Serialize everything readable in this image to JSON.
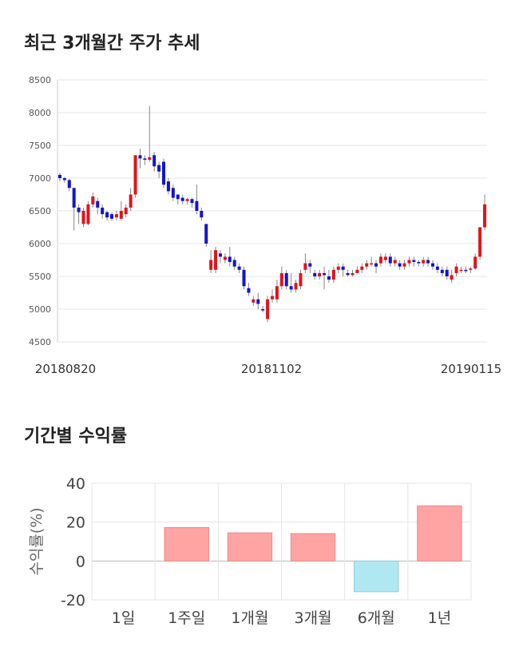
{
  "sections": {
    "candle_title": "최근 3개월간 주가 추세",
    "returns_title": "기간별 수익률"
  },
  "chart_data": [
    {
      "type": "candlestick",
      "title": "최근 3개월간 주가 추세",
      "x_tick_labels": [
        "20180820",
        "20181102",
        "20190115"
      ],
      "y_ticks": [
        4500,
        5000,
        5500,
        6000,
        6500,
        7000,
        7500,
        8000,
        8500
      ],
      "ylim": [
        4500,
        8500
      ],
      "grid": true,
      "colors": {
        "up": "#e0141b",
        "down": "#1414cc",
        "wick": "#888888",
        "grid": "#e4e4e4"
      },
      "candles": [
        [
          7050,
          7000,
          7080,
          6950
        ],
        [
          7000,
          6970,
          7020,
          6930
        ],
        [
          6970,
          6850,
          6990,
          6800
        ],
        [
          6850,
          6550,
          6850,
          6200
        ],
        [
          6550,
          6480,
          6600,
          6300
        ],
        [
          6300,
          6500,
          6550,
          6250
        ],
        [
          6300,
          6600,
          6650,
          6280
        ],
        [
          6600,
          6720,
          6780,
          6550
        ],
        [
          6650,
          6550,
          6700,
          6450
        ],
        [
          6550,
          6450,
          6600,
          6380
        ],
        [
          6480,
          6400,
          6500,
          6350
        ],
        [
          6450,
          6380,
          6480,
          6350
        ],
        [
          6400,
          6450,
          6500,
          6350
        ],
        [
          6380,
          6500,
          6650,
          6360
        ],
        [
          6450,
          6550,
          6600,
          6400
        ],
        [
          6550,
          6750,
          6850,
          6500
        ],
        [
          6750,
          7350,
          7350,
          6700
        ],
        [
          7350,
          7300,
          7450,
          7150
        ],
        [
          7300,
          7280,
          7350,
          7200
        ],
        [
          7280,
          7320,
          8100,
          7250
        ],
        [
          7350,
          7180,
          7400,
          7100
        ],
        [
          7200,
          7100,
          7250,
          7000
        ],
        [
          7250,
          6900,
          7300,
          6850
        ],
        [
          6950,
          6800,
          7000,
          6750
        ],
        [
          6850,
          6700,
          6900,
          6650
        ],
        [
          6750,
          6680,
          6750,
          6600
        ],
        [
          6700,
          6650,
          6750,
          6600
        ],
        [
          6650,
          6680,
          6700,
          6600
        ],
        [
          6680,
          6620,
          6700,
          6550
        ],
        [
          6650,
          6500,
          6900,
          6450
        ],
        [
          6500,
          6400,
          6550,
          6350
        ],
        [
          6300,
          6000,
          6300,
          5950
        ],
        [
          5600,
          5750,
          5900,
          5550
        ],
        [
          5600,
          5900,
          5950,
          5550
        ],
        [
          5850,
          5800,
          5900,
          5700
        ],
        [
          5750,
          5800,
          5850,
          5700
        ],
        [
          5800,
          5720,
          5950,
          5650
        ],
        [
          5750,
          5650,
          5800,
          5600
        ],
        [
          5650,
          5600,
          5700,
          5550
        ],
        [
          5600,
          5350,
          5650,
          5300
        ],
        [
          5320,
          5250,
          5400,
          5200
        ],
        [
          5100,
          5150,
          5200,
          5050
        ],
        [
          5150,
          5080,
          5250,
          5000
        ],
        [
          5000,
          4980,
          5050,
          4950
        ],
        [
          4850,
          5150,
          5200,
          4800
        ],
        [
          5150,
          5200,
          5300,
          5100
        ],
        [
          5150,
          5350,
          5450,
          5100
        ],
        [
          5350,
          5550,
          5650,
          5300
        ],
        [
          5550,
          5350,
          5600,
          5300
        ],
        [
          5350,
          5300,
          5550,
          5250
        ],
        [
          5300,
          5400,
          5450,
          5250
        ],
        [
          5350,
          5550,
          5600,
          5300
        ],
        [
          5600,
          5700,
          5850,
          5550
        ],
        [
          5700,
          5650,
          5750,
          5550
        ],
        [
          5550,
          5500,
          5600,
          5450
        ],
        [
          5500,
          5550,
          5600,
          5450
        ],
        [
          5550,
          5520,
          5650,
          5300
        ],
        [
          5500,
          5450,
          5600,
          5400
        ],
        [
          5450,
          5600,
          5650,
          5400
        ],
        [
          5600,
          5650,
          5700,
          5550
        ],
        [
          5650,
          5600,
          5700,
          5500
        ],
        [
          5550,
          5520,
          5600,
          5500
        ],
        [
          5520,
          5550,
          5600,
          5500
        ],
        [
          5550,
          5600,
          5650,
          5550
        ],
        [
          5600,
          5650,
          5700,
          5550
        ],
        [
          5650,
          5700,
          5750,
          5600
        ],
        [
          5700,
          5700,
          5800,
          5650
        ],
        [
          5700,
          5650,
          5750,
          5550
        ],
        [
          5700,
          5800,
          5850,
          5650
        ],
        [
          5750,
          5800,
          5850,
          5700
        ],
        [
          5800,
          5700,
          5850,
          5650
        ],
        [
          5700,
          5750,
          5800,
          5650
        ],
        [
          5700,
          5650,
          5750,
          5600
        ],
        [
          5650,
          5700,
          5750,
          5600
        ],
        [
          5700,
          5750,
          5800,
          5650
        ],
        [
          5750,
          5720,
          5800,
          5650
        ],
        [
          5720,
          5700,
          5750,
          5650
        ],
        [
          5700,
          5750,
          5800,
          5650
        ],
        [
          5750,
          5700,
          5800,
          5650
        ],
        [
          5700,
          5650,
          5750,
          5600
        ],
        [
          5650,
          5600,
          5700,
          5550
        ],
        [
          5600,
          5550,
          5650,
          5500
        ],
        [
          5600,
          5500,
          5650,
          5450
        ],
        [
          5450,
          5520,
          5600,
          5400
        ],
        [
          5550,
          5650,
          5700,
          5500
        ],
        [
          5600,
          5600,
          5650,
          5550
        ],
        [
          5600,
          5580,
          5650,
          5550
        ],
        [
          5600,
          5620,
          5650,
          5550
        ],
        [
          5620,
          5800,
          5850,
          5600
        ],
        [
          5800,
          6250,
          6250,
          5750
        ],
        [
          6250,
          6600,
          6750,
          6200
        ]
      ]
    },
    {
      "type": "bar",
      "title": "기간별 수익률",
      "ylabel": "수익률(%)",
      "categories": [
        "1일",
        "1주일",
        "1개월",
        "3개월",
        "6개월",
        "1년"
      ],
      "values": [
        0,
        17.2,
        14.5,
        14.1,
        -15.8,
        28.4
      ],
      "ylim": [
        -20,
        40
      ],
      "y_ticks": [
        -20,
        0,
        20,
        40
      ],
      "colors": {
        "positive": "#ffa3a3",
        "negative": "#b0e8f2",
        "grid": "#e6e6e6"
      }
    }
  ]
}
